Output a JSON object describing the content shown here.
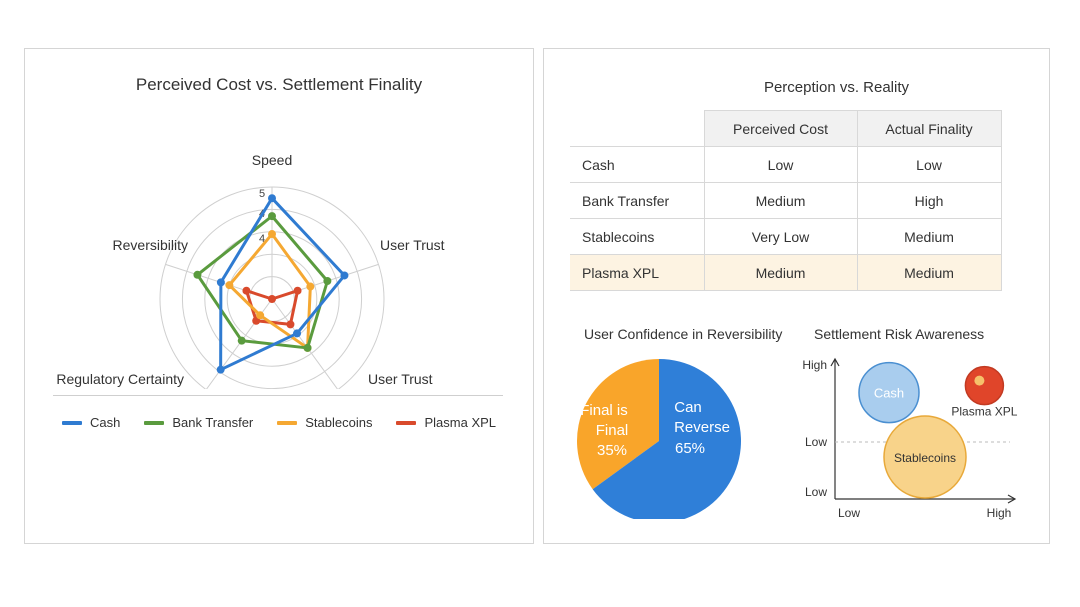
{
  "radar": {
    "title": "Perceived Cost vs. Settlement Finality",
    "axes": [
      "Speed",
      "User Trust",
      "User Trust",
      "Regulatory Certainty",
      "Reversibility"
    ],
    "tick_labels": [
      "5",
      "4",
      "4"
    ],
    "legend": [
      "Cash",
      "Bank Transfer",
      "Stablecoins",
      "Plasma XPL"
    ]
  },
  "table": {
    "title": "Perception vs. Reality",
    "headers": [
      "",
      "Perceived Cost",
      "Actual Finality"
    ],
    "rows": [
      {
        "label": "Cash",
        "perceived": "Low",
        "actual": "Low"
      },
      {
        "label": "Bank Transfer",
        "perceived": "Medium",
        "actual": "High"
      },
      {
        "label": "Stablecoins",
        "perceived": "Very Low",
        "actual": "Medium"
      },
      {
        "label": "Plasma XPL",
        "perceived": "Medium",
        "actual": "Medium"
      }
    ]
  },
  "pie": {
    "title": "User Confidence in Reversibility",
    "slice_final": [
      "Final is",
      "Final",
      "35%"
    ],
    "slice_reverse": [
      "Can",
      "Reverse",
      "65%"
    ]
  },
  "bubble": {
    "title": "Settlement Risk Awareness",
    "y_labels": [
      "High",
      "Low",
      "Low"
    ],
    "x_labels": [
      "Low",
      "High"
    ],
    "bubbles": [
      "Cash",
      "Plasma XPL",
      "Stablecoins"
    ]
  },
  "colors": {
    "cash": "#2f7bd1",
    "bank_transfer": "#5a9b3e",
    "stablecoins": "#f5a832",
    "plasma_xpl": "#d94a2c",
    "pie_final": "#f9a52a",
    "pie_reverse": "#2f7fd8"
  },
  "chart_data": [
    {
      "type": "radar",
      "title": "Perceived Cost vs. Settlement Finality",
      "axes": [
        "Speed",
        "User Trust",
        "User Trust",
        "Regulatory Certainty",
        "Reversibility"
      ],
      "range": [
        0,
        5
      ],
      "series": [
        {
          "name": "Cash",
          "values": [
            4.5,
            3.4,
            1.9,
            3.9,
            2.4
          ]
        },
        {
          "name": "Bank Transfer",
          "values": [
            3.7,
            2.6,
            2.7,
            2.3,
            3.5
          ]
        },
        {
          "name": "Stablecoins",
          "values": [
            2.9,
            1.8,
            2.7,
            0.9,
            2.0
          ]
        },
        {
          "name": "Plasma XPL",
          "values": [
            0,
            1.2,
            1.4,
            1.2,
            1.2
          ]
        }
      ],
      "legend_position": "bottom"
    },
    {
      "type": "pie",
      "title": "User Confidence in Reversibility",
      "slices": [
        {
          "label": "Final is Final",
          "value": 35
        },
        {
          "label": "Can Reverse",
          "value": 65
        }
      ]
    },
    {
      "type": "scatter",
      "title": "Settlement Risk Awareness",
      "x_ticks": [
        "Low",
        "High"
      ],
      "y_ticks": [
        "High",
        "Low",
        "Low"
      ],
      "points": [
        {
          "label": "Cash",
          "x": 0.3,
          "y": 0.76
        },
        {
          "label": "Plasma XPL",
          "x": 0.83,
          "y": 0.81
        },
        {
          "label": "Stablecoins",
          "x": 0.5,
          "y": 0.3
        }
      ]
    }
  ]
}
